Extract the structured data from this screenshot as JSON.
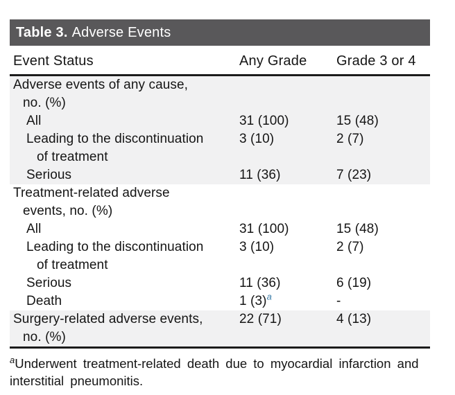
{
  "table": {
    "title_prefix": "Table 3.",
    "title_rest": "Adverse Events",
    "columns": [
      "Event Status",
      "Any Grade",
      "Grade 3 or 4"
    ],
    "rows": [
      {
        "label": "Adverse events of any cause,\nno. (%)",
        "any_grade": "",
        "grade34": ""
      },
      {
        "label": "All",
        "any_grade": "31 (100)",
        "grade34": "15 (48)"
      },
      {
        "label": "Leading to the discontinuation\nof treatment",
        "any_grade": "3 (10)",
        "grade34": "2 (7)"
      },
      {
        "label": "Serious",
        "any_grade": "11 (36)",
        "grade34": "7 (23)"
      },
      {
        "label": "Treatment-related adverse\nevents, no. (%)",
        "any_grade": "",
        "grade34": ""
      },
      {
        "label": "All",
        "any_grade": "31 (100)",
        "grade34": "15 (48)"
      },
      {
        "label": "Leading to the discontinuation\nof treatment",
        "any_grade": "3 (10)",
        "grade34": "2 (7)"
      },
      {
        "label": "Serious",
        "any_grade": "11 (36)",
        "grade34": "6 (19)"
      },
      {
        "label": "Death",
        "any_grade": "1 (3)",
        "any_grade_sup": "a",
        "grade34": "-"
      },
      {
        "label": "Surgery-related adverse events,\nno. (%)",
        "any_grade": "22 (71)",
        "grade34": "4 (13)"
      }
    ],
    "footnote_sup": "a",
    "footnote_text": "Underwent treatment-related death due to myocardial infarction and\ninterstitial pneumonitis."
  },
  "colors": {
    "title_bar_bg": "#59585a",
    "title_bar_text": "#ffffff",
    "shaded_row_bg": "#f1f1f2",
    "rule": "#1b1b1b",
    "superscript_accent": "#3a7ca8"
  }
}
